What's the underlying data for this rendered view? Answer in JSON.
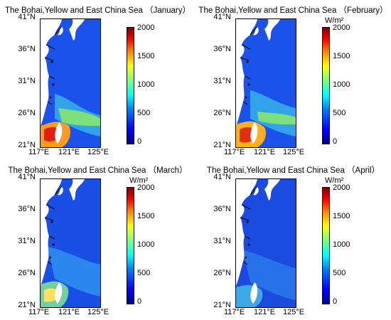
{
  "unit": "W/m²",
  "y_ticks": [
    "41°N",
    "36°N",
    "31°N",
    "26°N",
    "21°N"
  ],
  "x_ticks": [
    "117°E",
    "121°E",
    "125°E"
  ],
  "colorbar_ticks": [
    "2000",
    "1500",
    "1000",
    "500",
    "0"
  ],
  "colorbar_range": [
    0,
    2000
  ],
  "colormap": "jet",
  "land_color": "#ffffff",
  "panels": [
    {
      "title": "The Bohai,Yellow and East China Sea （January）"
    },
    {
      "title": "The Bohai,Yellow and East China Sea （February）"
    },
    {
      "title": "The Bohai,Yellow and East China Sea （March）"
    },
    {
      "title": "The Bohai,Yellow and East China Sea （April）"
    }
  ]
}
